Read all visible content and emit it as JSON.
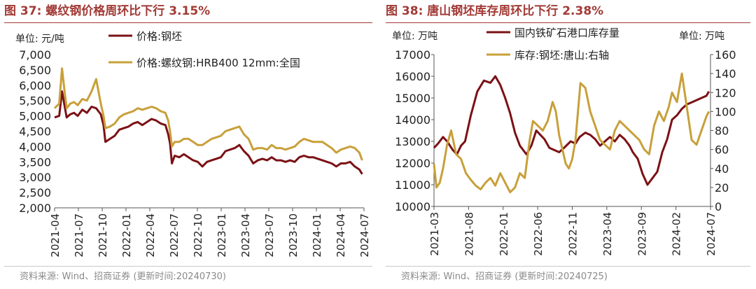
{
  "colors": {
    "title": "#a23a36",
    "series_primary": "#7b1115",
    "series_secondary": "#c8a03a",
    "axis": "#555555",
    "source_text": "#8a8a8a"
  },
  "left": {
    "title": "图 37:  螺纹钢价格周环比下行 3.15%",
    "unit_label": "单位:  元/吨",
    "source": "资料来源:  Wind、招商证券 (更新时间:20240730)"
  },
  "right": {
    "title": "图 38:  唐山钢坯库存周环比下行 2.38%",
    "unit_left_label": "单位:  万吨",
    "unit_right_label": "单位:  万吨",
    "source": "资料来源:  Wind、招商证券 (更新时间:20240725)"
  },
  "chart_data": [
    {
      "type": "line",
      "title": "螺纹钢价格周环比下行 3.15%",
      "ylabel": "单位:  元/吨",
      "ylim": [
        2000,
        7000
      ],
      "yticks": [
        "7,000",
        "6,500",
        "6,000",
        "5,500",
        "5,000",
        "4,500",
        "4,000",
        "3,500",
        "3,000",
        "2,500",
        "2,000"
      ],
      "xlim": [
        2021.25,
        2024.6
      ],
      "xtick_labels": [
        "2021-04",
        "2021-07",
        "2021-10",
        "2022-01",
        "2022-04",
        "2022-07",
        "2022-10",
        "2023-01",
        "2023-04",
        "2023-07",
        "2023-10",
        "2024-01",
        "2024-04",
        "2024-07"
      ],
      "legend_position": "top",
      "series": [
        {
          "name": "价格:钢坯",
          "color": "#7b1115",
          "x": [
            2021.25,
            2021.3,
            2021.33,
            2021.36,
            2021.38,
            2021.42,
            2021.46,
            2021.5,
            2021.55,
            2021.6,
            2021.65,
            2021.7,
            2021.75,
            2021.78,
            2021.8,
            2021.85,
            2021.9,
            2021.95,
            2022.0,
            2022.05,
            2022.1,
            2022.15,
            2022.2,
            2022.25,
            2022.3,
            2022.35,
            2022.4,
            2022.45,
            2022.48,
            2022.5,
            2022.52,
            2022.55,
            2022.6,
            2022.65,
            2022.7,
            2022.75,
            2022.8,
            2022.85,
            2022.9,
            2022.95,
            2023.0,
            2023.05,
            2023.1,
            2023.15,
            2023.2,
            2023.25,
            2023.3,
            2023.35,
            2023.4,
            2023.45,
            2023.5,
            2023.55,
            2023.6,
            2023.65,
            2023.7,
            2023.75,
            2023.8,
            2023.85,
            2023.9,
            2023.95,
            2024.0,
            2024.05,
            2024.1,
            2024.15,
            2024.2,
            2024.25,
            2024.3,
            2024.35,
            2024.4,
            2024.45,
            2024.5,
            2024.55,
            2024.58
          ],
          "y": [
            4950,
            5000,
            5800,
            5300,
            4950,
            5050,
            5100,
            5000,
            5200,
            5100,
            5300,
            5250,
            5050,
            4700,
            4150,
            4250,
            4350,
            4550,
            4600,
            4650,
            4750,
            4800,
            4700,
            4800,
            4900,
            4850,
            4750,
            4700,
            4400,
            4100,
            3450,
            3700,
            3650,
            3750,
            3650,
            3550,
            3500,
            3350,
            3500,
            3550,
            3600,
            3650,
            3850,
            3900,
            3950,
            4050,
            3850,
            3700,
            3450,
            3550,
            3600,
            3550,
            3650,
            3550,
            3550,
            3500,
            3550,
            3500,
            3650,
            3700,
            3650,
            3650,
            3600,
            3550,
            3500,
            3450,
            3350,
            3450,
            3450,
            3500,
            3350,
            3250,
            3100
          ]
        },
        {
          "name": "价格:螺纹钢:HRB400 12mm:全国",
          "color": "#c8a03a",
          "x": [
            2021.25,
            2021.3,
            2021.33,
            2021.36,
            2021.38,
            2021.42,
            2021.46,
            2021.5,
            2021.55,
            2021.6,
            2021.65,
            2021.7,
            2021.75,
            2021.78,
            2021.8,
            2021.85,
            2021.9,
            2021.95,
            2022.0,
            2022.05,
            2022.1,
            2022.15,
            2022.2,
            2022.25,
            2022.3,
            2022.35,
            2022.4,
            2022.45,
            2022.48,
            2022.5,
            2022.52,
            2022.55,
            2022.6,
            2022.65,
            2022.7,
            2022.75,
            2022.8,
            2022.85,
            2022.9,
            2022.95,
            2023.0,
            2023.05,
            2023.1,
            2023.15,
            2023.2,
            2023.25,
            2023.3,
            2023.35,
            2023.4,
            2023.45,
            2023.5,
            2023.55,
            2023.6,
            2023.65,
            2023.7,
            2023.75,
            2023.8,
            2023.85,
            2023.9,
            2023.95,
            2024.0,
            2024.05,
            2024.1,
            2024.15,
            2024.2,
            2024.25,
            2024.3,
            2024.35,
            2024.4,
            2024.45,
            2024.5,
            2024.55,
            2024.58
          ],
          "y": [
            5250,
            5400,
            6550,
            5750,
            5250,
            5400,
            5450,
            5350,
            5550,
            5500,
            5800,
            6200,
            5400,
            5000,
            4600,
            4650,
            4750,
            4950,
            5050,
            5100,
            5150,
            5250,
            5200,
            5250,
            5300,
            5250,
            5150,
            5100,
            4850,
            4500,
            4000,
            4150,
            4150,
            4250,
            4250,
            4150,
            4050,
            4050,
            4150,
            4250,
            4300,
            4350,
            4500,
            4550,
            4600,
            4650,
            4400,
            4250,
            3900,
            3950,
            3950,
            3900,
            4050,
            3950,
            3950,
            3900,
            3950,
            4000,
            4150,
            4250,
            4200,
            4150,
            4150,
            4150,
            4050,
            3950,
            3800,
            3900,
            3950,
            4000,
            3950,
            3800,
            3550
          ]
        }
      ]
    },
    {
      "type": "line",
      "title": "唐山钢坯库存周环比下行 2.38%",
      "ylabel": "单位:  万吨",
      "y2label": "单位:  万吨",
      "ylim": [
        10000,
        17000
      ],
      "y2lim": [
        0,
        160
      ],
      "yticks": [
        "17000",
        "16000",
        "15000",
        "14000",
        "13000",
        "12000",
        "11000",
        "10000"
      ],
      "y2ticks": [
        "160",
        "140",
        "120",
        "100",
        "80",
        "60",
        "40",
        "20",
        "0"
      ],
      "xlim": [
        2021.17,
        2024.55
      ],
      "xtick_labels": [
        "2021-03",
        "2021-08",
        "2022-01",
        "2022-06",
        "2022-11",
        "2023-04",
        "2023-09",
        "2024-02",
        "2024-07"
      ],
      "legend_position": "top",
      "series": [
        {
          "name": "国内铁矿石港口库存量",
          "color": "#7b1115",
          "axis": "left",
          "x": [
            2021.17,
            2021.22,
            2021.28,
            2021.33,
            2021.4,
            2021.45,
            2021.5,
            2021.55,
            2021.62,
            2021.7,
            2021.78,
            2021.86,
            2021.92,
            2021.98,
            2022.04,
            2022.1,
            2022.16,
            2022.22,
            2022.3,
            2022.36,
            2022.42,
            2022.47,
            2022.52,
            2022.58,
            2022.64,
            2022.7,
            2022.76,
            2022.84,
            2022.9,
            2022.95,
            2023.02,
            2023.08,
            2023.14,
            2023.2,
            2023.26,
            2023.32,
            2023.38,
            2023.44,
            2023.5,
            2023.56,
            2023.6,
            2023.66,
            2023.72,
            2023.78,
            2023.84,
            2023.9,
            2023.96,
            2024.02,
            2024.08,
            2024.14,
            2024.2,
            2024.26,
            2024.32,
            2024.38,
            2024.44,
            2024.5,
            2024.53
          ],
          "y": [
            12700,
            12900,
            13200,
            13000,
            12600,
            12400,
            12800,
            13000,
            14200,
            15300,
            15800,
            15700,
            16000,
            15600,
            15000,
            14300,
            13400,
            12800,
            12400,
            12800,
            13500,
            13300,
            13100,
            12700,
            12600,
            12500,
            12700,
            13000,
            12900,
            13200,
            13400,
            13300,
            13100,
            12800,
            13000,
            13200,
            13000,
            13300,
            13100,
            12800,
            12500,
            12200,
            11500,
            11000,
            11300,
            11600,
            12500,
            13100,
            14000,
            14200,
            14500,
            14700,
            14800,
            14900,
            15000,
            15100,
            15300
          ]
        },
        {
          "name": "库存:钢坯:唐山:右轴",
          "color": "#c8a03a",
          "axis": "right",
          "x": [
            2021.17,
            2021.2,
            2021.24,
            2021.28,
            2021.33,
            2021.38,
            2021.44,
            2021.5,
            2021.56,
            2021.62,
            2021.68,
            2021.74,
            2021.8,
            2021.86,
            2021.92,
            2021.98,
            2022.04,
            2022.1,
            2022.16,
            2022.22,
            2022.28,
            2022.34,
            2022.38,
            2022.44,
            2022.5,
            2022.56,
            2022.62,
            2022.66,
            2022.7,
            2022.74,
            2022.78,
            2022.82,
            2022.86,
            2022.9,
            2022.96,
            2023.02,
            2023.08,
            2023.14,
            2023.2,
            2023.26,
            2023.32,
            2023.38,
            2023.44,
            2023.5,
            2023.56,
            2023.62,
            2023.68,
            2023.74,
            2023.8,
            2023.86,
            2023.92,
            2023.98,
            2024.04,
            2024.08,
            2024.14,
            2024.2,
            2024.26,
            2024.32,
            2024.38,
            2024.44,
            2024.5,
            2024.53
          ],
          "y": [
            45,
            20,
            25,
            40,
            65,
            80,
            55,
            50,
            35,
            28,
            22,
            18,
            25,
            30,
            22,
            35,
            25,
            15,
            20,
            35,
            30,
            70,
            90,
            85,
            80,
            90,
            110,
            100,
            75,
            60,
            45,
            40,
            50,
            70,
            130,
            125,
            100,
            85,
            70,
            65,
            60,
            80,
            90,
            85,
            80,
            75,
            70,
            60,
            55,
            85,
            100,
            90,
            105,
            120,
            110,
            140,
            105,
            70,
            65,
            80,
            95,
            100
          ]
        }
      ]
    }
  ]
}
